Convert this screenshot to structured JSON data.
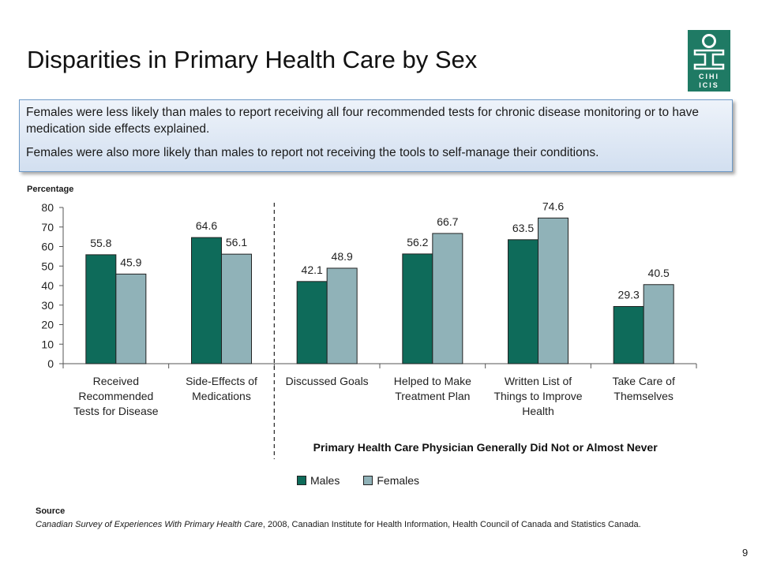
{
  "slide": {
    "title": "Disparities in Primary Health Care by Sex",
    "logo": {
      "icon": "cihi-icis-logo",
      "text_top": "CIHI",
      "text_bottom": "ICIS",
      "color": "#1f7a64"
    },
    "callout": [
      "Females were less likely than males to report receiving all four recommended tests for chronic disease monitoring or to have medication side effects explained.",
      "Females were also more likely than males to report not receiving the tools to self-manage their conditions."
    ],
    "source_heading": "Source",
    "source_title": "Canadian Survey of Experiences With Primary Health Care",
    "source_rest": ", 2008, Canadian Institute for Health Information, Health Council of Canada and Statistics Canada.",
    "page_number": "9"
  },
  "chart_data": {
    "type": "bar",
    "ylabel": "Percentage",
    "ylim": [
      0,
      80
    ],
    "yticks": [
      0,
      10,
      20,
      30,
      40,
      50,
      60,
      70,
      80
    ],
    "categories": [
      [
        "Received",
        "Recommended",
        "Tests for Disease"
      ],
      [
        "Side-Effects of",
        "Medications"
      ],
      [
        "Discussed Goals"
      ],
      [
        "Helped to Make",
        "Treatment Plan"
      ],
      [
        "Written List of",
        "Things to Improve",
        "Health"
      ],
      [
        "Take Care of",
        "Themselves"
      ]
    ],
    "series": [
      {
        "name": "Males",
        "color": "#0e6b5a",
        "values": [
          55.8,
          64.6,
          42.1,
          56.2,
          63.5,
          29.3
        ]
      },
      {
        "name": "Females",
        "color": "#90b2b8",
        "values": [
          45.9,
          56.1,
          48.9,
          66.7,
          74.6,
          40.5
        ]
      }
    ],
    "group_label": "Primary Health Care Physician Generally Did Not or Almost Never",
    "legend_position": "bottom",
    "grid": false
  }
}
